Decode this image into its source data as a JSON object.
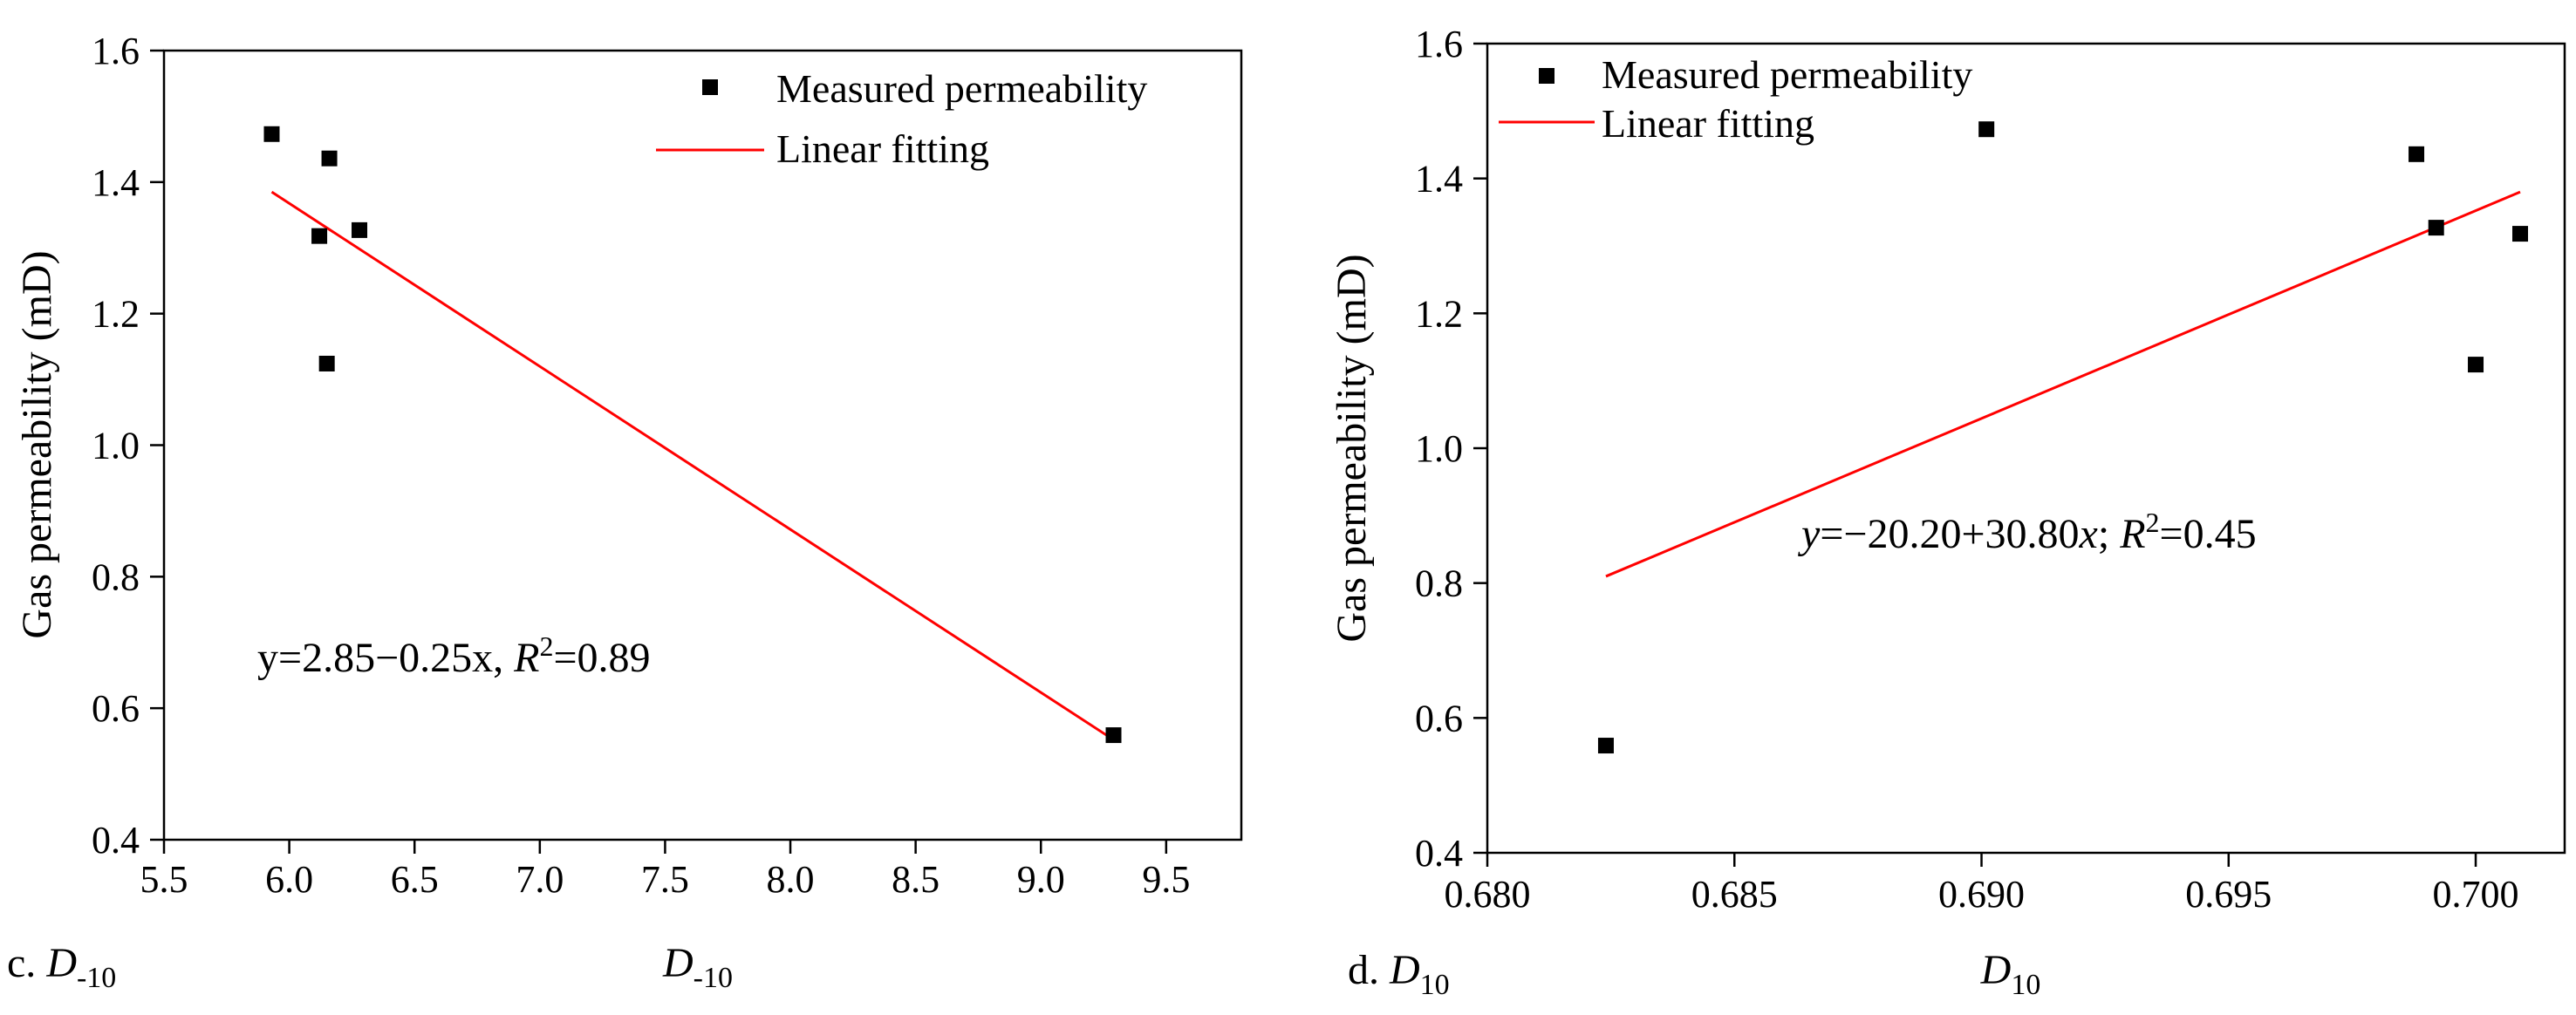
{
  "chart_data": [
    {
      "type": "scatter",
      "panel_label": "c.",
      "panel_symbol": "D",
      "panel_sub": "-10",
      "xlabel_symbol": "D",
      "xlabel_sub": "-10",
      "ylabel": "Gas permeability (mD)",
      "xlim": [
        5.5,
        9.8
      ],
      "ylim": [
        0.4,
        1.6
      ],
      "x_ticks": [
        "5.5",
        "6.0",
        "6.5",
        "7.0",
        "7.5",
        "8.0",
        "8.5",
        "9.0",
        "9.5"
      ],
      "y_ticks": [
        "0.4",
        "0.6",
        "0.8",
        "1.0",
        "1.2",
        "1.4",
        "1.6"
      ],
      "legend": {
        "placement": "top-right",
        "points_label": "Measured permeability",
        "line_label": "Linear fitting"
      },
      "series": [
        {
          "name": "Measured permeability",
          "x": [
            5.93,
            6.16,
            6.12,
            6.28,
            6.15,
            9.29
          ],
          "y": [
            1.473,
            1.436,
            1.318,
            1.327,
            1.124,
            0.559
          ]
        }
      ],
      "fit": {
        "name": "Linear fitting",
        "x0": 5.93,
        "y0": 1.385,
        "x1": 9.29,
        "y1": 0.552
      },
      "equation": {
        "prefix": "y=2.85−0.25x, ",
        "r": "R",
        "sup": "2",
        "suffix": "=0.89"
      }
    },
    {
      "type": "scatter",
      "panel_label": "d.",
      "panel_symbol": "D",
      "panel_sub": "10",
      "xlabel_symbol": "D",
      "xlabel_sub": "10",
      "ylabel": "Gas permeability (mD)",
      "xlim": [
        0.68,
        0.7018
      ],
      "ylim": [
        0.4,
        1.6
      ],
      "x_ticks": [
        "0.680",
        "0.685",
        "0.690",
        "0.695",
        "0.700"
      ],
      "y_ticks": [
        "0.4",
        "0.6",
        "0.8",
        "1.0",
        "1.2",
        "1.4",
        "1.6"
      ],
      "legend": {
        "placement": "top-left",
        "points_label": "Measured permeability",
        "line_label": "Linear fitting"
      },
      "series": [
        {
          "name": "Measured permeability",
          "x": [
            0.6824,
            0.6901,
            0.6988,
            0.6992,
            0.7,
            0.7009
          ],
          "y": [
            0.559,
            1.473,
            1.436,
            1.327,
            1.124,
            1.318
          ]
        }
      ],
      "fit": {
        "name": "Linear fitting",
        "x0": 0.6824,
        "y0": 0.81,
        "x1": 0.7009,
        "y1": 1.38
      },
      "equation": {
        "y": "y",
        "mid": "=−20.20+30.80",
        "x": "x",
        "sep": "; ",
        "r": "R",
        "sup": "2",
        "suffix": "=0.45"
      }
    }
  ]
}
